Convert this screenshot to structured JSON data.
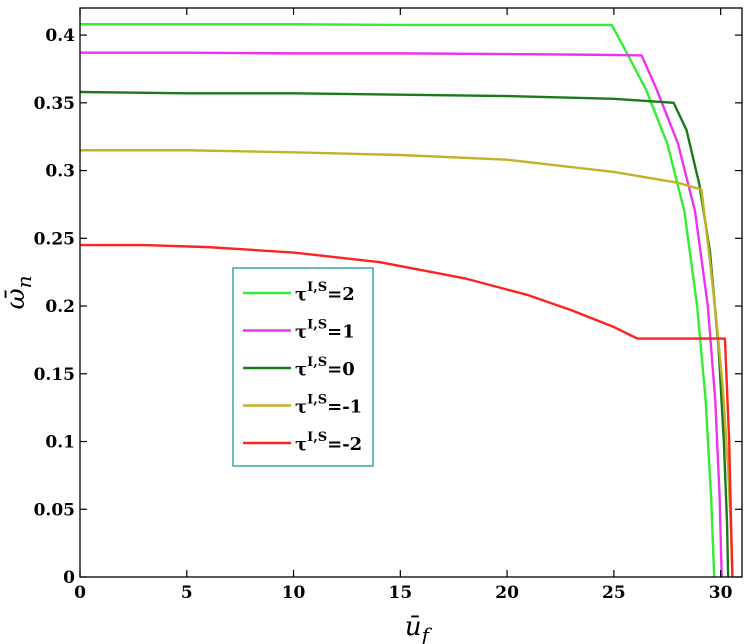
{
  "chart_data": {
    "type": "line",
    "title": "",
    "xlabel": "ū_f",
    "ylabel": "ω̄_n",
    "xlim": [
      0,
      31
    ],
    "ylim": [
      0,
      0.42
    ],
    "xticks": [
      0,
      5,
      10,
      15,
      20,
      25,
      30
    ],
    "yticks": [
      0,
      0.05,
      0.1,
      0.15,
      0.2,
      0.25,
      0.3,
      0.35,
      0.4
    ],
    "xtick_labels": [
      "0",
      "5",
      "10",
      "15",
      "20",
      "25",
      "30"
    ],
    "ytick_labels": [
      "0",
      "0.05",
      "0.1",
      "0.15",
      "0.2",
      "0.25",
      "0.3",
      "0.35",
      "0.4"
    ],
    "grid": false,
    "legend_position": "center-left",
    "series": [
      {
        "name_base": "τ",
        "name_sup": "I,S",
        "name_suffix": "=2",
        "color": "#33ee33",
        "points": [
          [
            0,
            0.408
          ],
          [
            5,
            0.408
          ],
          [
            10,
            0.408
          ],
          [
            15,
            0.4075
          ],
          [
            20,
            0.4075
          ],
          [
            24.9,
            0.4075
          ],
          [
            25.5,
            0.39
          ],
          [
            26.5,
            0.36
          ],
          [
            27.5,
            0.32
          ],
          [
            28.3,
            0.27
          ],
          [
            28.9,
            0.2
          ],
          [
            29.3,
            0.13
          ],
          [
            29.55,
            0.06
          ],
          [
            29.7,
            0
          ]
        ]
      },
      {
        "name_base": "τ",
        "name_sup": "I,S",
        "name_suffix": "=1",
        "color": "#ee33ee",
        "points": [
          [
            0,
            0.387
          ],
          [
            5,
            0.387
          ],
          [
            10,
            0.3865
          ],
          [
            15,
            0.3865
          ],
          [
            20,
            0.386
          ],
          [
            24,
            0.3855
          ],
          [
            26.3,
            0.385
          ],
          [
            27,
            0.36
          ],
          [
            28,
            0.32
          ],
          [
            28.8,
            0.27
          ],
          [
            29.4,
            0.2
          ],
          [
            29.75,
            0.13
          ],
          [
            29.95,
            0.06
          ],
          [
            30.05,
            0
          ]
        ]
      },
      {
        "name_base": "τ",
        "name_sup": "I,S",
        "name_suffix": "=0",
        "color": "#1a7a1a",
        "points": [
          [
            0,
            0.358
          ],
          [
            5,
            0.357
          ],
          [
            10,
            0.357
          ],
          [
            15,
            0.356
          ],
          [
            20,
            0.355
          ],
          [
            25,
            0.353
          ],
          [
            27.8,
            0.35
          ],
          [
            28.4,
            0.33
          ],
          [
            29,
            0.29
          ],
          [
            29.5,
            0.24
          ],
          [
            29.9,
            0.17
          ],
          [
            30.15,
            0.1
          ],
          [
            30.3,
            0.04
          ],
          [
            30.35,
            0
          ]
        ]
      },
      {
        "name_base": "τ",
        "name_sup": "I,S",
        "name_suffix": "=-1",
        "color": "#c2b22a",
        "points": [
          [
            0,
            0.315
          ],
          [
            5,
            0.315
          ],
          [
            10,
            0.3135
          ],
          [
            15,
            0.3115
          ],
          [
            20,
            0.308
          ],
          [
            25,
            0.299
          ],
          [
            28,
            0.291
          ],
          [
            29.1,
            0.286
          ],
          [
            29.45,
            0.24
          ],
          [
            29.8,
            0.19
          ],
          [
            30.1,
            0.14
          ],
          [
            30.35,
            0.08
          ],
          [
            30.5,
            0.03
          ],
          [
            30.55,
            0
          ]
        ]
      },
      {
        "name_base": "τ",
        "name_sup": "I,S",
        "name_suffix": "=-2",
        "color": "#ff2222",
        "points": [
          [
            0,
            0.245
          ],
          [
            3,
            0.245
          ],
          [
            6,
            0.2435
          ],
          [
            10,
            0.2395
          ],
          [
            14,
            0.2325
          ],
          [
            18,
            0.2205
          ],
          [
            21,
            0.208
          ],
          [
            23,
            0.197
          ],
          [
            25,
            0.1845
          ],
          [
            26.1,
            0.176
          ],
          [
            28,
            0.176
          ],
          [
            30,
            0.176
          ],
          [
            30.2,
            0.176
          ],
          [
            30.4,
            0.1
          ],
          [
            30.5,
            0.03
          ],
          [
            30.55,
            0
          ]
        ]
      }
    ]
  }
}
